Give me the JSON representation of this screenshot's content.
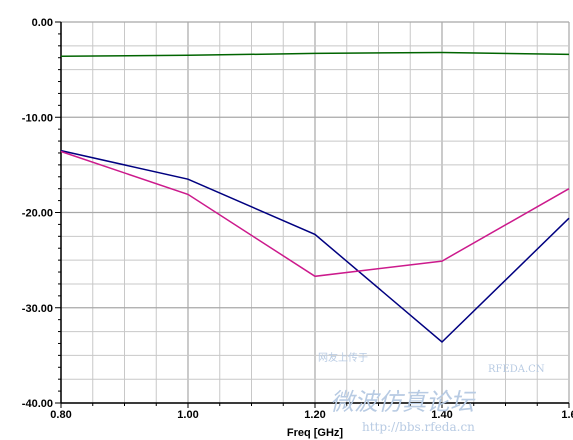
{
  "chart_data": {
    "type": "line",
    "title": "",
    "xlabel": "Freq [GHz]",
    "ylabel": "",
    "xlim": [
      0.8,
      1.6
    ],
    "ylim": [
      -40,
      0
    ],
    "x_ticks": [
      0.8,
      1.0,
      1.2,
      1.4,
      1.6
    ],
    "x_tick_labels": [
      "0.80",
      "1.00",
      "1.20",
      "1.40",
      "1.6"
    ],
    "y_ticks": [
      0,
      -10,
      -20,
      -30,
      -40
    ],
    "y_tick_labels": [
      "0.00",
      "-10.00",
      "-20.00",
      "-30.00",
      "-40.00"
    ],
    "grid": true,
    "legend": "none",
    "series": [
      {
        "color": "#006400",
        "x": [
          0.8,
          1.0,
          1.2,
          1.4,
          1.6
        ],
        "values": [
          -3.6,
          -3.5,
          -3.3,
          -3.2,
          -3.4
        ]
      },
      {
        "color": "#000080",
        "x": [
          0.8,
          1.0,
          1.2,
          1.4,
          1.6
        ],
        "values": [
          -13.5,
          -16.5,
          -22.3,
          -33.6,
          -20.6
        ]
      },
      {
        "color": "#cc1a8c",
        "x": [
          0.8,
          1.0,
          1.2,
          1.4,
          1.6
        ],
        "values": [
          -13.6,
          -18.1,
          -26.7,
          -25.1,
          -17.5
        ]
      }
    ]
  },
  "watermark": {
    "text_top": "网友上传于",
    "text_site": "RFEDA.CN",
    "text_main": "微波仿真论坛",
    "text_url": "http://bbs.rfeda.cn"
  }
}
